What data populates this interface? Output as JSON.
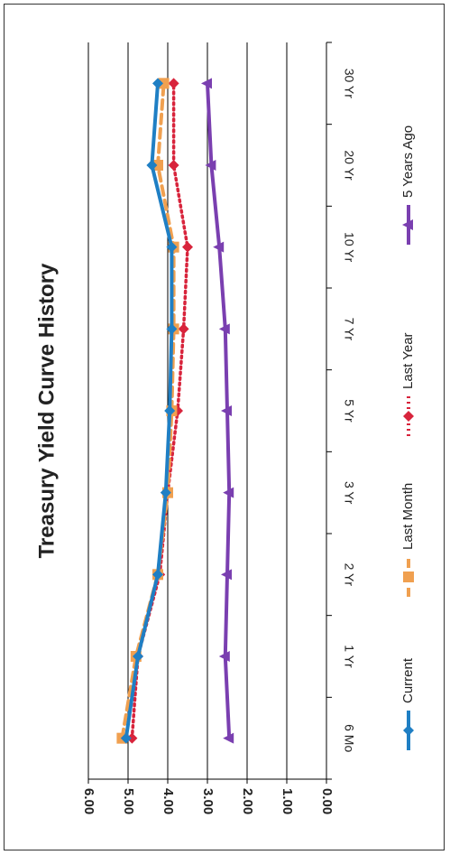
{
  "chart_data": {
    "type": "line",
    "title": "Treasury Yield Curve History",
    "xlabel": "",
    "ylabel": "",
    "categories": [
      "6 Mo",
      "1 Yr",
      "2 Yr",
      "3 Yr",
      "5 Yr",
      "7 Yr",
      "10 Yr",
      "20 Yr",
      "30 Yr"
    ],
    "ylim": [
      0,
      6
    ],
    "yticks": [
      "0.00",
      "1.00",
      "2.00",
      "3.00",
      "4.00",
      "5.00",
      "6.00"
    ],
    "grid": true,
    "legend_position": "bottom",
    "orientation": "rotated 90° clockwise",
    "series": [
      {
        "name": "Current",
        "values": [
          5.05,
          4.75,
          4.25,
          4.05,
          3.95,
          3.9,
          3.9,
          4.4,
          4.25
        ],
        "color": "#1f7fc4",
        "marker": "diamond",
        "dash": "solid"
      },
      {
        "name": "Last Month",
        "values": [
          5.15,
          4.8,
          4.25,
          4.0,
          3.9,
          3.85,
          3.85,
          4.25,
          4.1
        ],
        "color": "#f0a050",
        "marker": "square",
        "dash": "dashed"
      },
      {
        "name": "Last Year",
        "values": [
          4.9,
          4.75,
          4.2,
          4.0,
          3.75,
          3.6,
          3.5,
          3.85,
          3.85
        ],
        "color": "#d8243c",
        "marker": "diamond",
        "dash": "dotted"
      },
      {
        "name": "5 Years Ago",
        "values": [
          2.45,
          2.55,
          2.5,
          2.45,
          2.5,
          2.55,
          2.7,
          2.9,
          3.0
        ],
        "color": "#7a3fb0",
        "marker": "triangle",
        "dash": "solid"
      }
    ]
  }
}
